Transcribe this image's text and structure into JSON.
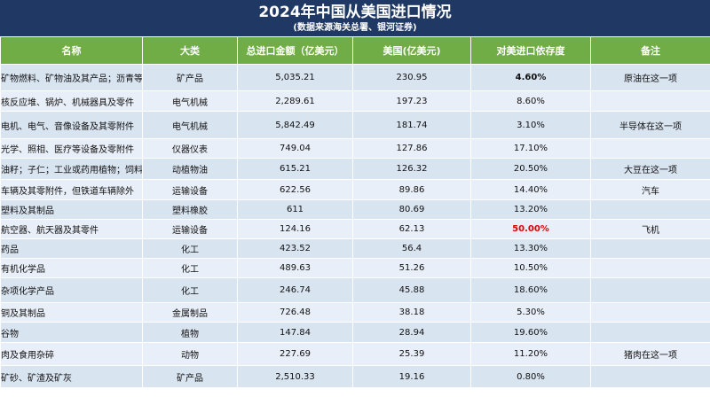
{
  "header": {
    "title": "2024年中国从美国进口情况",
    "subtitle": "(数据来源海关总署、银河证券)"
  },
  "table": {
    "columns": [
      "名称",
      "大类",
      "总进口金额（亿美元）",
      "美国(亿美元)",
      "对美进口依存度",
      "备注"
    ],
    "rows": [
      [
        "矿物燃料、矿物油及其产品；沥青等",
        "矿产品",
        "5,035.21",
        "230.95",
        "4.60%",
        "原油在这一项"
      ],
      [
        "核反应堆、锅炉、机械器具及零件",
        "电气机械",
        "2,289.61",
        "197.23",
        "8.60%"
      ],
      [
        "电机、电气、音像设备及其零附件",
        "电气机械",
        "5,842.49",
        "181.74",
        "3.10%",
        "半导体在这一项"
      ],
      [
        "光学、照相、医疗等设备及零附件",
        "仪器仪表",
        "749.04",
        "127.86",
        "17.10%"
      ],
      [
        "油籽；子仁；工业或药用植物；饲料",
        "动植物油",
        "615.21",
        "126.32",
        "20.50%",
        "大豆在这一项"
      ],
      [
        "车辆及其零附件，但铁道车辆除外",
        "运输设备",
        "622.56",
        "89.86",
        "14.40%",
        "汽车"
      ],
      [
        "塑料及其制品",
        "塑料橡胶",
        "611",
        "80.69",
        "13.20%"
      ],
      [
        "航空器、航天器及其零件",
        "运输设备",
        "124.16",
        "62.13",
        "50.00%",
        "飞机"
      ],
      [
        "药品",
        "化工",
        "423.52",
        "56.4",
        "13.30%"
      ],
      [
        "有机化学品",
        "化工",
        "489.63",
        "51.26",
        "10.50%"
      ],
      [
        "杂项化学产品",
        "化工",
        "246.74",
        "45.88",
        "18.60%"
      ],
      [
        "铜及其制品",
        "金属制品",
        "726.48",
        "38.18",
        "5.30%"
      ],
      [
        "谷物",
        "植物",
        "147.84",
        "28.94",
        "19.60%"
      ],
      [
        "肉及食用杂碎",
        "动物",
        "227.69",
        "25.39",
        "11.20%",
        "猪肉在这一项"
      ],
      [
        "矿砂、矿渣及矿灰",
        "矿产品",
        "2,510.33",
        "19.16",
        "0.80%"
      ]
    ]
  }
}
